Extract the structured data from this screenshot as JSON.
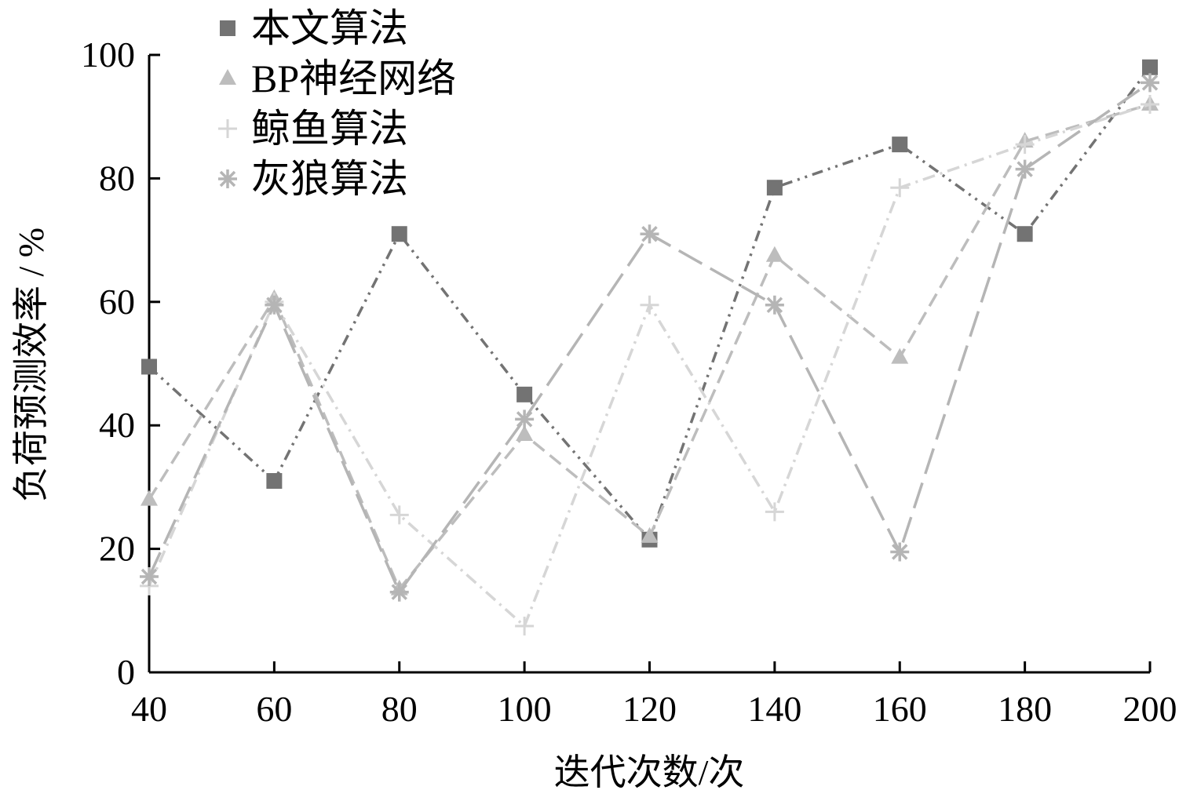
{
  "chart_data": {
    "type": "line",
    "title": "",
    "xlabel": "迭代次数/次",
    "ylabel": "负荷预测效率 / %",
    "x": [
      40,
      60,
      80,
      100,
      120,
      140,
      160,
      180,
      200
    ],
    "xlim": [
      40,
      200
    ],
    "ylim": [
      0,
      100
    ],
    "x_ticks": [
      "40",
      "60",
      "80",
      "100",
      "120",
      "140",
      "160",
      "180",
      "200"
    ],
    "y_ticks": [
      "0",
      "20",
      "40",
      "60",
      "80",
      "100"
    ],
    "grid": false,
    "legend_position": "top-left",
    "series": [
      {
        "name": "本文算法",
        "marker": "square",
        "color": "#737373",
        "dash": "dash-dot-dot",
        "values": [
          49.5,
          31,
          71,
          45,
          21.5,
          78.5,
          85.5,
          71,
          98
        ]
      },
      {
        "name": "BP神经网络",
        "marker": "triangle",
        "color": "#bdbdbd",
        "dash": "dash",
        "values": [
          28,
          60.5,
          13.5,
          38.5,
          22,
          67.5,
          51,
          86,
          92
        ]
      },
      {
        "name": "鲸鱼算法",
        "marker": "plus",
        "color": "#d6d6d6",
        "dash": "dash-dot",
        "values": [
          14,
          60,
          25.5,
          7.5,
          59.5,
          26,
          78.5,
          85.5,
          92
        ]
      },
      {
        "name": "灰狼算法",
        "marker": "asterisk",
        "color": "#b5b5b5",
        "dash": "long-dash",
        "values": [
          15.5,
          59.5,
          13,
          41,
          71,
          59.5,
          19.5,
          81.5,
          95.5
        ]
      }
    ]
  }
}
